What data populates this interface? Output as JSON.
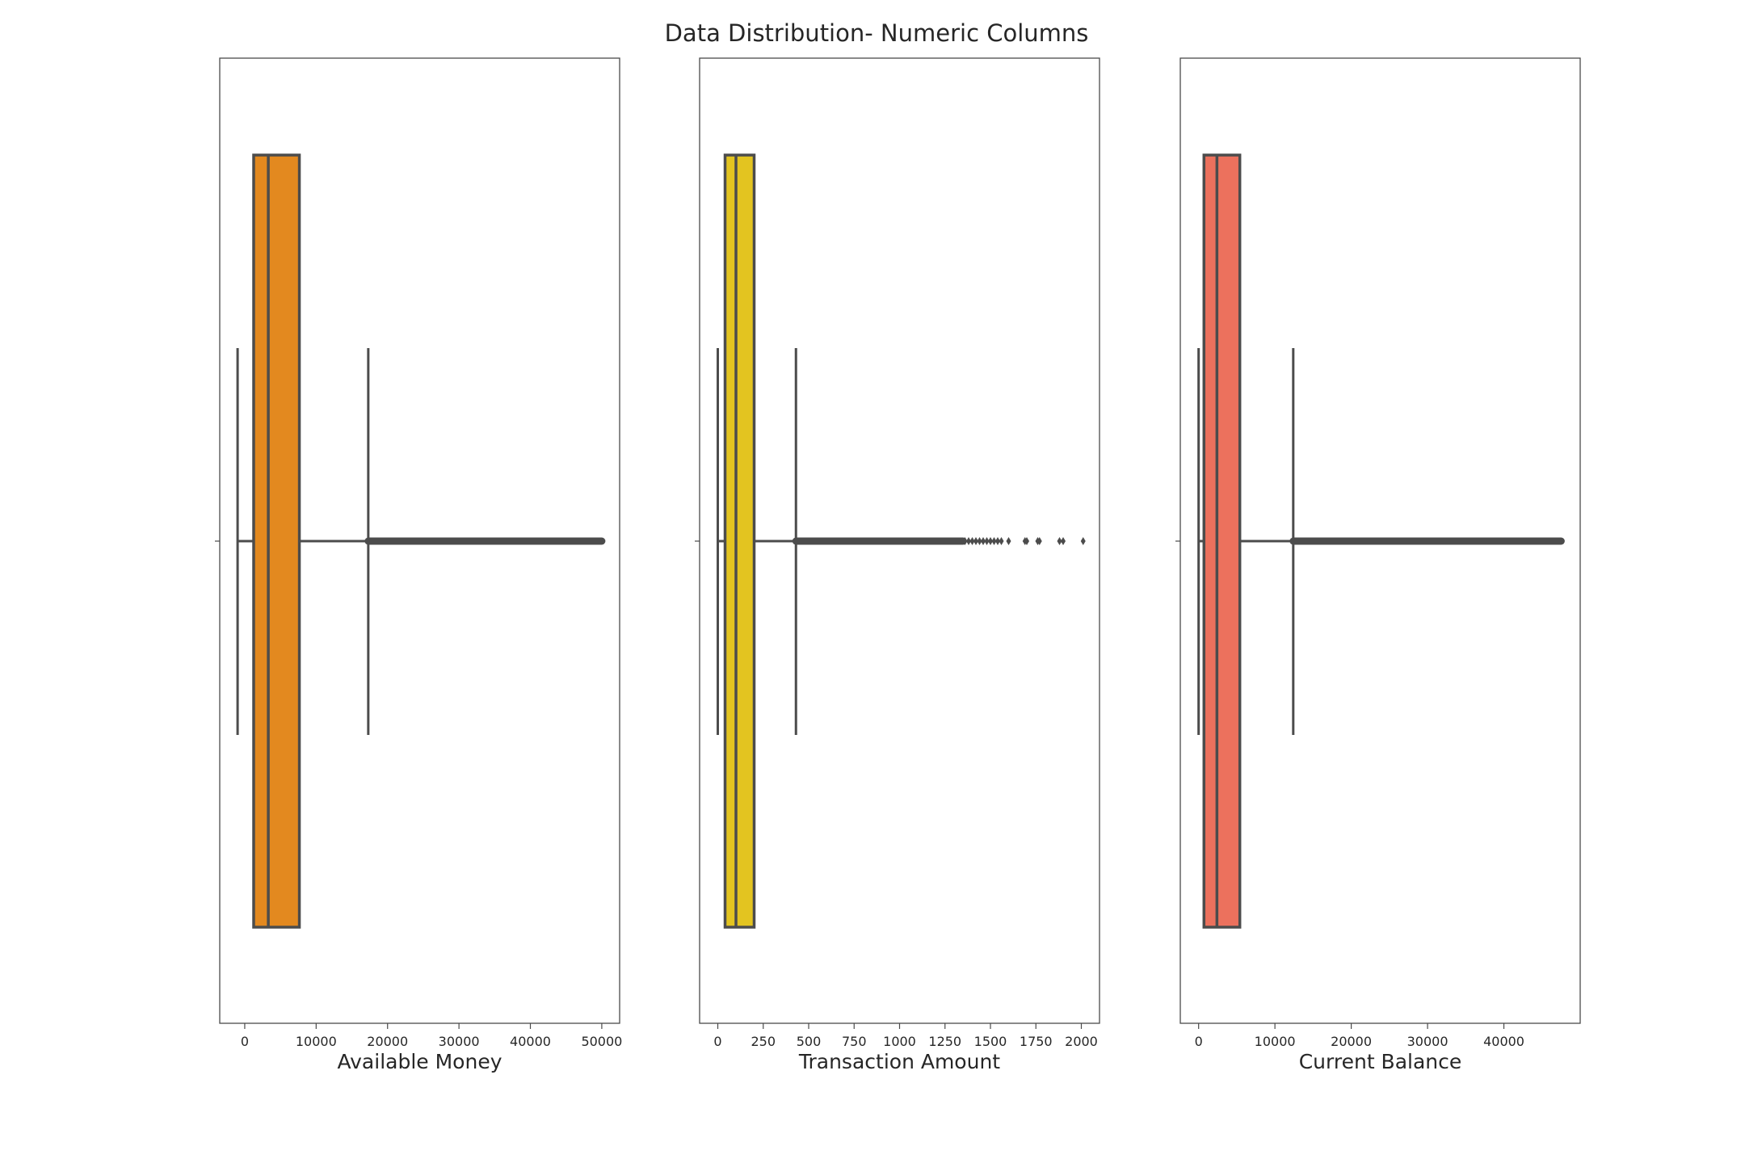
{
  "figure": {
    "title": "Data Distribution- Numeric Columns"
  },
  "chart_data": [
    {
      "type": "box",
      "xlabel": "Available Money",
      "color": "#e3891f",
      "xlim": [
        -3500,
        52500
      ],
      "xticks": [
        0,
        10000,
        20000,
        30000,
        40000,
        50000
      ],
      "box": {
        "whisker_low": -1000,
        "q1": 1250,
        "median": 3300,
        "q3": 7650,
        "whisker_high": 17300
      },
      "outliers_range": [
        17300,
        50000
      ],
      "outlier_points": []
    },
    {
      "type": "box",
      "xlabel": "Transaction Amount",
      "color": "#e3c420",
      "xlim": [
        -100,
        2100
      ],
      "xticks": [
        0,
        250,
        500,
        750,
        1000,
        1250,
        1500,
        1750,
        2000
      ],
      "box": {
        "whisker_low": 0,
        "q1": 40,
        "median": 100,
        "q3": 200,
        "whisker_high": 430
      },
      "outliers_range": [
        430,
        1350
      ],
      "outlier_points": [
        1360,
        1380,
        1400,
        1420,
        1440,
        1460,
        1480,
        1500,
        1520,
        1540,
        1560,
        1600,
        1690,
        1700,
        1760,
        1770,
        1880,
        1900,
        2010
      ]
    },
    {
      "type": "box",
      "xlabel": "Current Balance",
      "color": "#ec715d",
      "xlim": [
        -2400,
        50000
      ],
      "xticks": [
        0,
        10000,
        20000,
        30000,
        40000
      ],
      "box": {
        "whisker_low": 0,
        "q1": 700,
        "median": 2400,
        "q3": 5400,
        "whisker_high": 12400
      },
      "outliers_range": [
        12400,
        47500
      ],
      "outlier_points": []
    }
  ]
}
